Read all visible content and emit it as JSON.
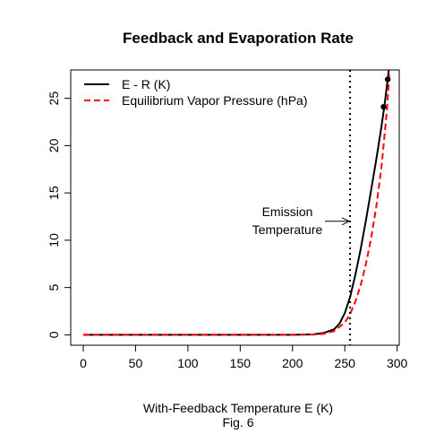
{
  "chart_data": {
    "type": "line",
    "title": "Feedback and Evaporation Rate",
    "xlabel": "With-Feedback Temperature E (K)",
    "caption": "Fig. 6",
    "ylabel": "",
    "xlim": [
      -12,
      302
    ],
    "ylim": [
      -1.1,
      28
    ],
    "xticks": [
      0,
      50,
      100,
      150,
      200,
      250,
      300
    ],
    "yticks": [
      0,
      5,
      10,
      15,
      20,
      25
    ],
    "xtick_labels": [
      "0",
      "50",
      "100",
      "150",
      "200",
      "250",
      "300"
    ],
    "ytick_labels": [
      "0",
      "5",
      "10",
      "15",
      "20",
      "25"
    ],
    "grid": false,
    "legend_position": "top-left",
    "series": [
      {
        "name": "E - R (K)",
        "color": "#000000",
        "style": "solid",
        "x": [
          0,
          50,
          100,
          150,
          200,
          220,
          230,
          240,
          245,
          250,
          255,
          260,
          265,
          270,
          275,
          280,
          285,
          288,
          291,
          293
        ],
        "y": [
          0,
          0,
          0,
          0,
          0,
          0.05,
          0.2,
          0.6,
          1.2,
          2.3,
          4.0,
          6.3,
          9.0,
          12.0,
          15.2,
          18.5,
          22.0,
          24.3,
          27.0,
          29.0
        ]
      },
      {
        "name": "Equilibrium Vapor Pressure (hPa)",
        "color": "#ff0000",
        "style": "dashed",
        "x": [
          0,
          50,
          100,
          150,
          200,
          220,
          230,
          240,
          250,
          255,
          260,
          265,
          270,
          275,
          280,
          285,
          290,
          293
        ],
        "y": [
          0,
          0,
          0,
          0,
          0,
          0.03,
          0.1,
          0.4,
          1.3,
          2.2,
          3.5,
          5.2,
          7.4,
          10.1,
          13.5,
          17.7,
          23.5,
          28.5
        ]
      }
    ],
    "points": [
      {
        "x": 287,
        "y": 24.1
      },
      {
        "x": 291,
        "y": 27.0
      }
    ],
    "vertical_line": {
      "x": 255,
      "style": "dotted",
      "color": "#000000"
    },
    "annotation": {
      "lines": [
        "Emission",
        "Temperature"
      ],
      "arrow_to": {
        "x": 255,
        "y": 12
      }
    }
  }
}
